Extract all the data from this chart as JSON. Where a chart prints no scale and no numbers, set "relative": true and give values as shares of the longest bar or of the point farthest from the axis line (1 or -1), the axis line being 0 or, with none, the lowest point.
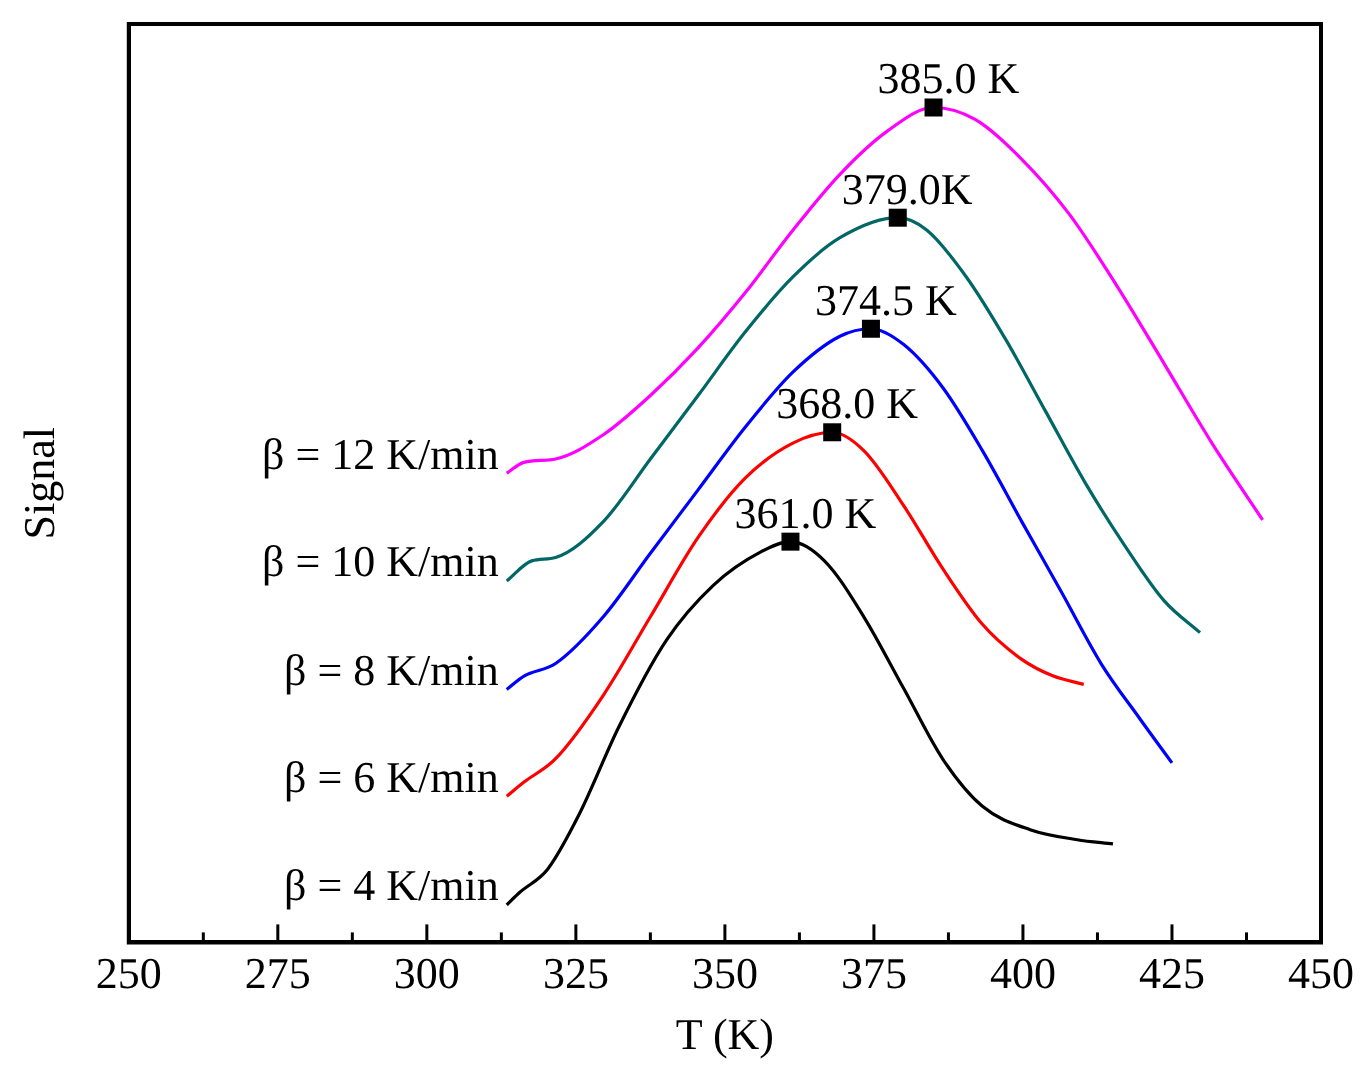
{
  "chart_data": {
    "type": "line",
    "relative": true,
    "xlabel": "T (K)",
    "ylabel": "Signal",
    "xlim": [
      250,
      450
    ],
    "xticks": [
      250,
      {
        "value": 262.5,
        "label": null
      },
      275,
      {
        "value": 287.5,
        "label": null
      },
      300,
      {
        "value": 312.5,
        "label": null
      },
      325,
      {
        "value": 337.5,
        "label": null
      },
      350,
      {
        "value": 362.5,
        "label": null
      },
      375,
      {
        "value": 387.5,
        "label": null
      },
      400,
      {
        "value": 412.5,
        "label": null
      },
      425,
      {
        "value": 437.5,
        "label": null
      },
      450
    ],
    "grid": false,
    "legend": false,
    "marker": "none",
    "line_style": "solid",
    "series": [
      {
        "name": "β = 4 K/min",
        "color": "#000000",
        "x": [
          313.4,
          315.6,
          320.3,
          325.6,
          332.2,
          340.2,
          348.1,
          356.1,
          361.0,
          366.7,
          373.3,
          380,
          386.6,
          393.2,
          401.2,
          409.1,
          415.1
        ],
        "values": [
          0.045,
          0.06,
          0.088,
          0.154,
          0.258,
          0.362,
          0.428,
          0.468,
          0.48,
          0.457,
          0.39,
          0.304,
          0.219,
          0.163,
          0.135,
          0.123,
          0.118
        ]
      },
      {
        "name": "β = 6 K/min",
        "color": "#ff0000",
        "x": [
          313.4,
          316.3,
          321.6,
          329.6,
          337.5,
          345.5,
          353.4,
          361.4,
          368.0,
          373.3,
          380,
          386.6,
          393.2,
          399.8,
          405.1,
          410.2
        ],
        "values": [
          0.175,
          0.192,
          0.22,
          0.296,
          0.39,
          0.485,
          0.556,
          0.598,
          0.611,
          0.589,
          0.523,
          0.447,
          0.381,
          0.339,
          0.319,
          0.309
        ]
      },
      {
        "name": "β = 8 K/min",
        "color": "#0000ff",
        "x": [
          313.4,
          316.3,
          321.6,
          329.6,
          337.5,
          345.5,
          353.4,
          361.4,
          369.3,
          374.5,
          380,
          386.6,
          393.2,
          399.8,
          406.5,
          413.1,
          419.7,
          425.0
        ],
        "values": [
          0.303,
          0.319,
          0.334,
          0.39,
          0.466,
          0.542,
          0.617,
          0.683,
          0.726,
          0.735,
          0.716,
          0.664,
          0.589,
          0.504,
          0.419,
          0.334,
          0.267,
          0.215
        ]
      },
      {
        "name": "β = 10 K/min",
        "color": "#006666",
        "x": [
          313.4,
          317.6,
          321.6,
          329.6,
          337.5,
          345.5,
          353.4,
          361.4,
          369.3,
          379.0,
          383.9,
          390.5,
          397.2,
          403.8,
          410.4,
          417.1,
          423.7,
          429.7
        ],
        "values": [
          0.433,
          0.457,
          0.461,
          0.504,
          0.579,
          0.655,
          0.731,
          0.797,
          0.844,
          0.868,
          0.853,
          0.797,
          0.721,
          0.636,
          0.551,
          0.475,
          0.409,
          0.371
        ]
      },
      {
        "name": "β = 12 K/min",
        "color": "#ff00ff",
        "x": [
          313.4,
          316.3,
          321.6,
          329.6,
          337.5,
          345.5,
          353.4,
          361.4,
          369.3,
          377.3,
          385.0,
          391.9,
          399.8,
          407.8,
          415.7,
          423.7,
          431.7,
          440.2
        ],
        "values": [
          0.562,
          0.575,
          0.579,
          0.608,
          0.655,
          0.712,
          0.778,
          0.853,
          0.92,
          0.972,
          1,
          0.986,
          0.938,
          0.872,
          0.787,
          0.693,
          0.598,
          0.506
        ]
      }
    ],
    "annotations": [
      {
        "text": "361.0 K",
        "x": 361.0,
        "y": 0.48
      },
      {
        "text": "368.0 K",
        "x": 368.0,
        "y": 0.611
      },
      {
        "text": "374.5 K",
        "x": 374.5,
        "y": 0.735
      },
      {
        "text": "379.0K",
        "x": 379.0,
        "y": 0.868
      },
      {
        "text": "385.0 K",
        "x": 385.0,
        "y": 1
      }
    ]
  }
}
